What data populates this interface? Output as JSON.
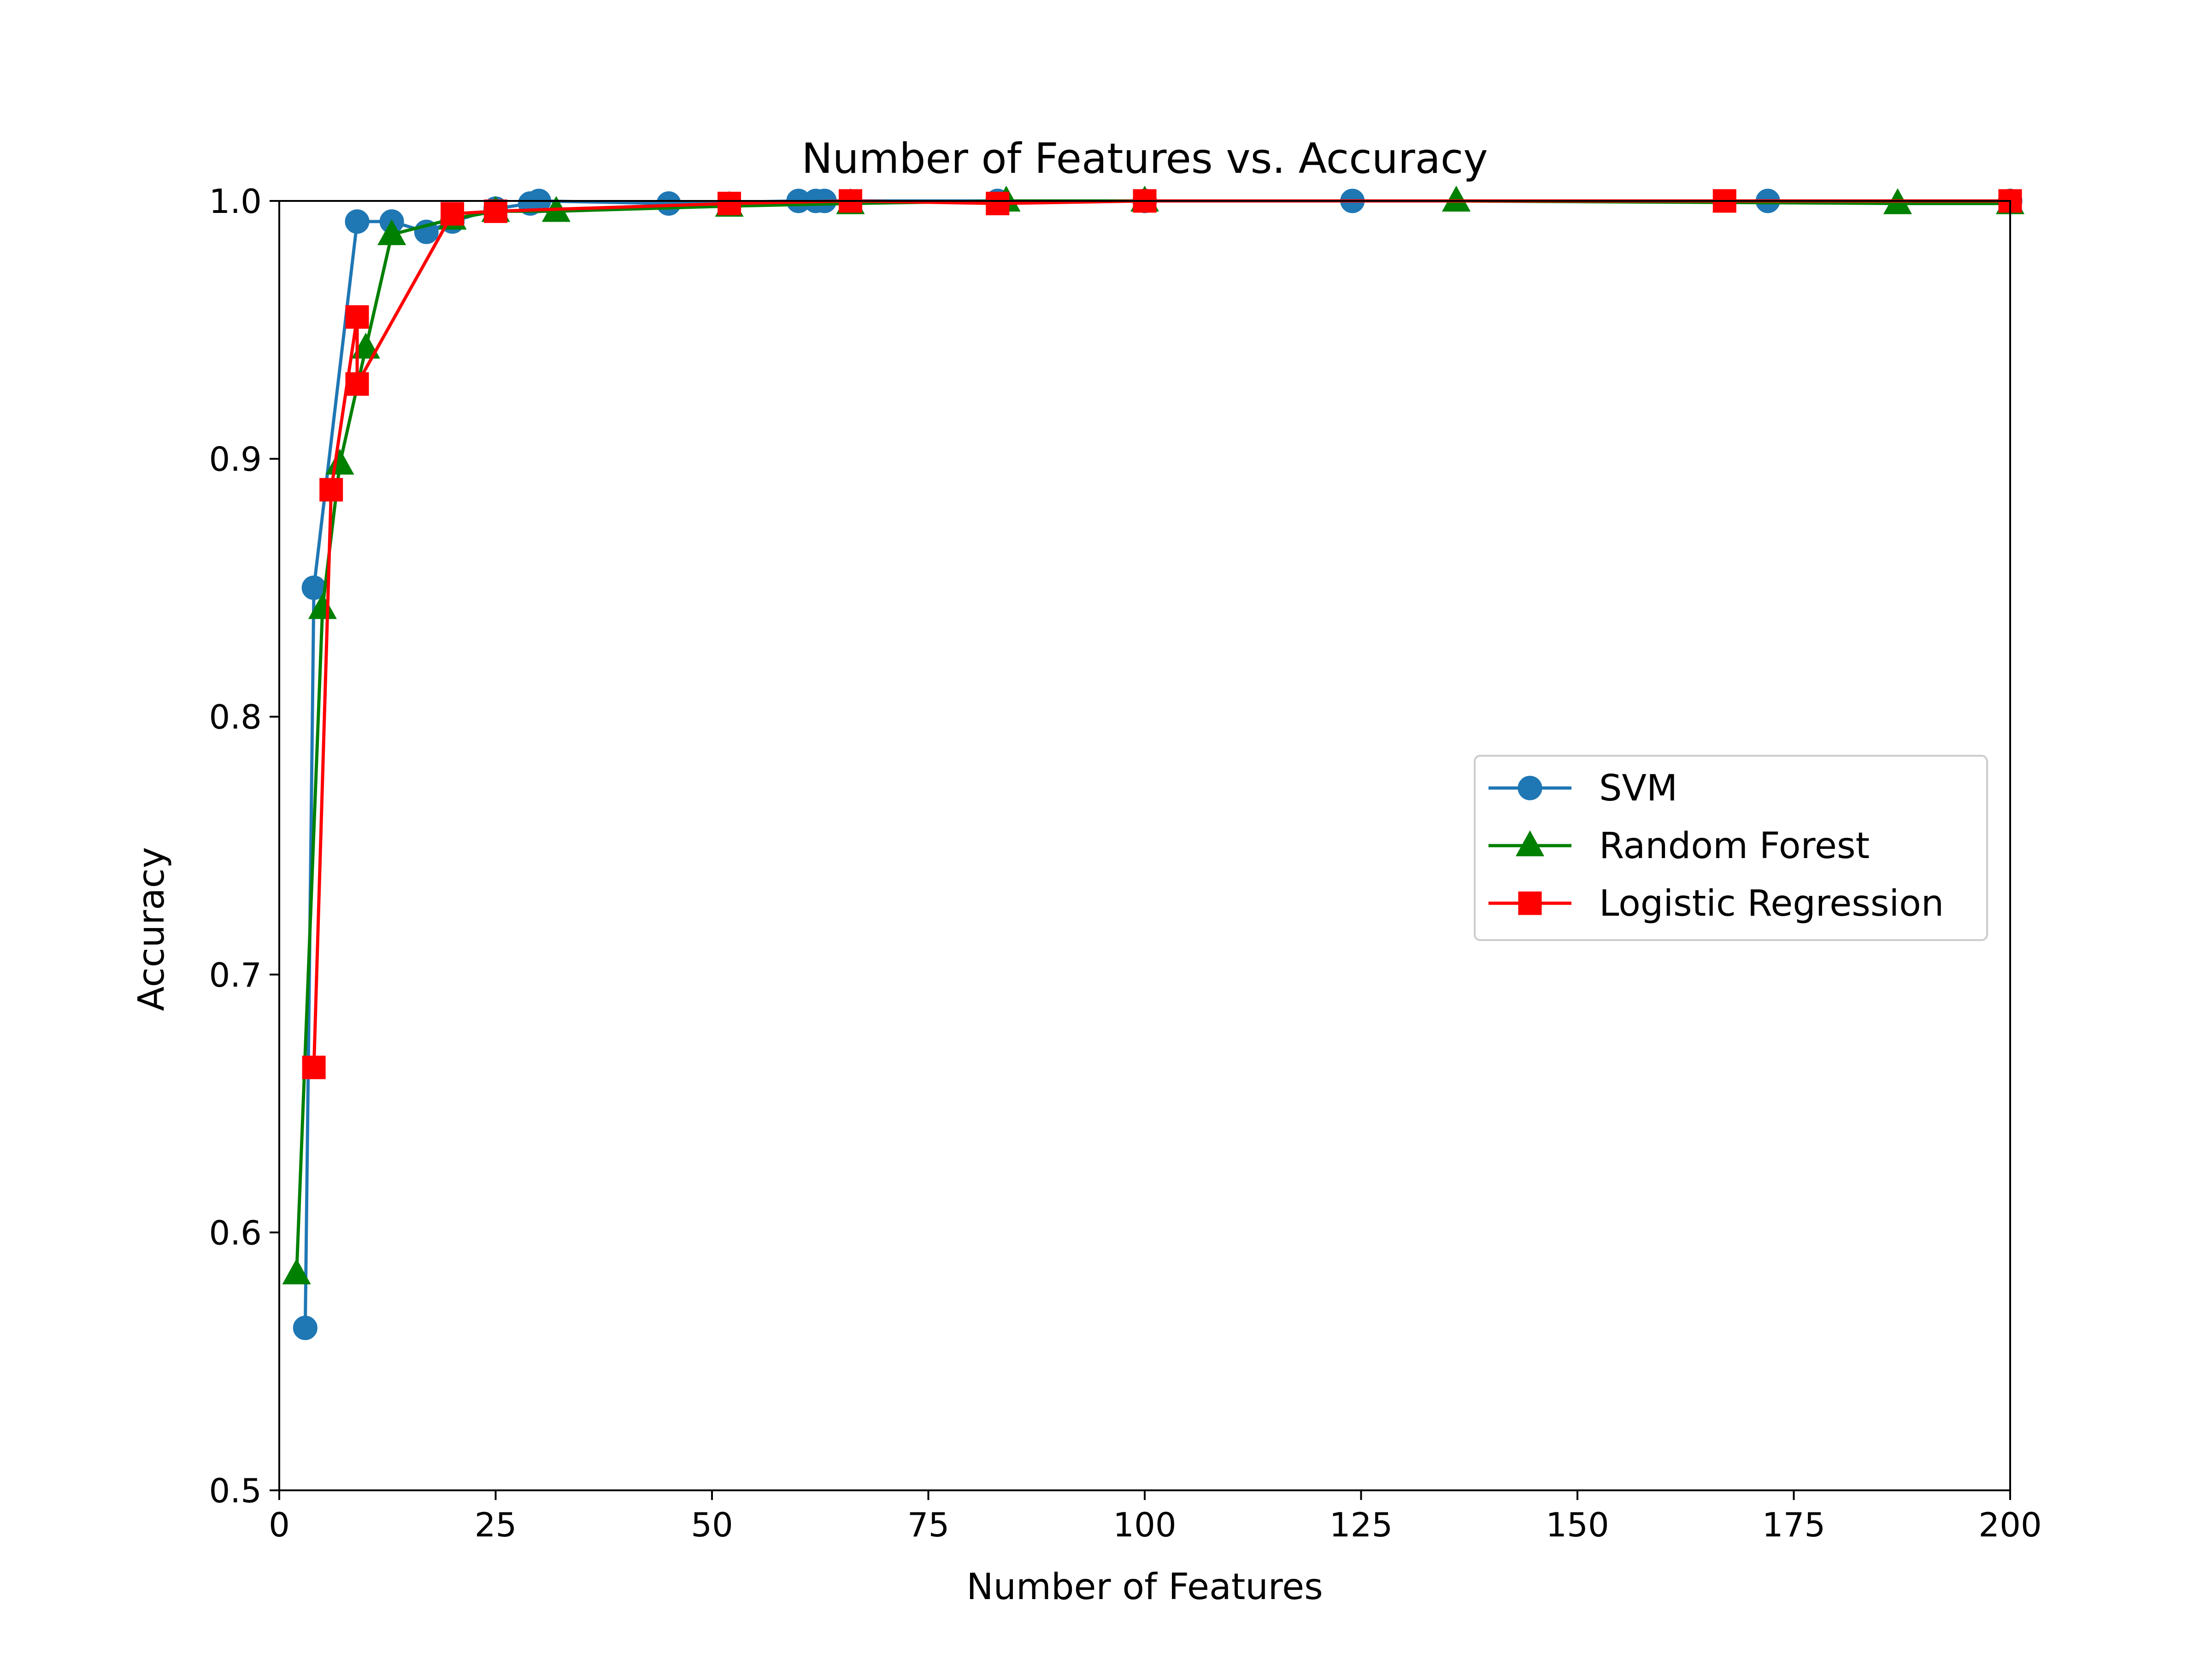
{
  "chart_data": {
    "type": "line",
    "title": "Number of Features vs. Accuracy",
    "xlabel": "Number of Features",
    "ylabel": "Accuracy",
    "xlim": [
      0,
      200
    ],
    "ylim": [
      0.5,
      1.0
    ],
    "xticks": [
      0,
      25,
      50,
      75,
      100,
      125,
      150,
      175,
      200
    ],
    "yticks": [
      0.5,
      0.6,
      0.7,
      0.8,
      0.9,
      1.0
    ],
    "xtick_labels": [
      "0",
      "25",
      "50",
      "75",
      "100",
      "125",
      "150",
      "175",
      "200"
    ],
    "ytick_labels": [
      "0.5",
      "0.6",
      "0.7",
      "0.8",
      "0.9",
      "1.0"
    ],
    "grid": false,
    "legend_position": "center-right",
    "series": [
      {
        "name": "SVM",
        "color": "#1f77b4",
        "marker": "circle",
        "x": [
          3,
          4,
          9,
          13,
          17,
          20,
          25,
          29,
          30,
          45,
          60,
          62,
          63,
          83,
          100,
          124,
          172,
          200
        ],
        "y": [
          0.563,
          0.85,
          0.992,
          0.992,
          0.988,
          0.992,
          0.997,
          0.999,
          1.0,
          0.999,
          1.0,
          1.0,
          1.0,
          1.0,
          1.0,
          1.0,
          1.0,
          1.0
        ]
      },
      {
        "name": "Random Forest",
        "color": "#008000",
        "marker": "triangle",
        "x": [
          2,
          5,
          7,
          10,
          13,
          20,
          25,
          32,
          52,
          66,
          84,
          100,
          136,
          187,
          200
        ],
        "y": [
          0.584,
          0.842,
          0.898,
          0.943,
          0.987,
          0.993,
          0.996,
          0.996,
          0.998,
          0.999,
          1.0,
          1.0,
          1.0,
          0.999,
          0.999
        ]
      },
      {
        "name": "Logistic Regression",
        "color": "#ff0000",
        "marker": "square",
        "x": [
          4,
          6,
          9,
          9,
          20,
          25,
          52,
          66,
          83,
          100,
          167,
          200
        ],
        "y": [
          0.664,
          0.888,
          0.955,
          0.929,
          0.995,
          0.996,
          0.999,
          1.0,
          0.999,
          1.0,
          1.0,
          1.0
        ]
      }
    ]
  }
}
